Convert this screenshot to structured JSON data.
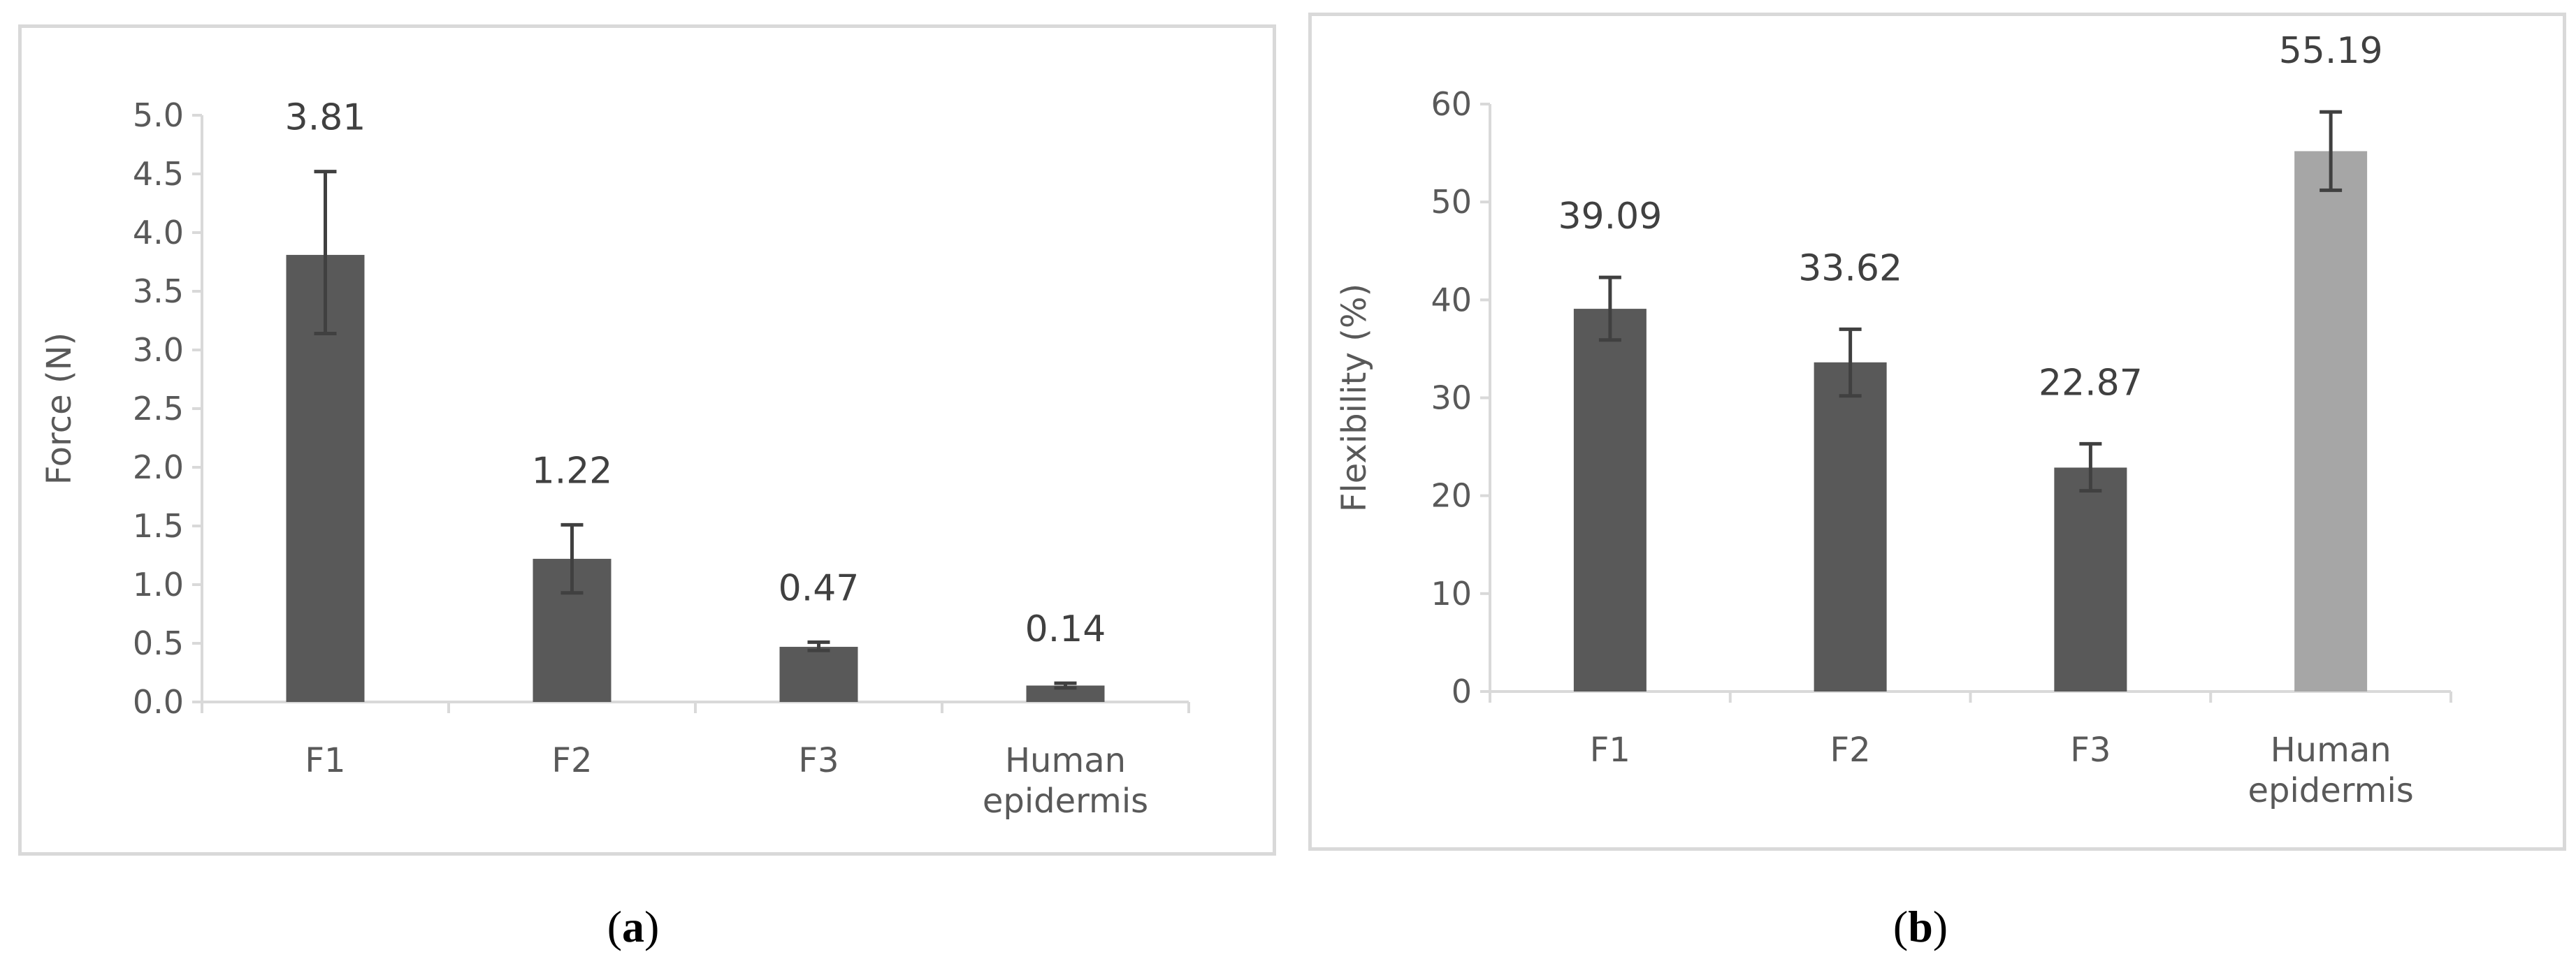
{
  "chart_data": [
    {
      "type": "bar",
      "panel_label": "a",
      "categories": [
        "F1",
        "F2",
        "F3",
        "Human epidermis"
      ],
      "category_lines": [
        [
          "F1"
        ],
        [
          "F2"
        ],
        [
          "F3"
        ],
        [
          "Human",
          "epidermis"
        ]
      ],
      "values": [
        3.81,
        1.22,
        0.47,
        0.14
      ],
      "value_labels": [
        "3.81",
        "1.22",
        "0.47",
        "0.14"
      ],
      "error_low": [
        3.14,
        0.93,
        0.44,
        0.12
      ],
      "error_high": [
        4.52,
        1.51,
        0.51,
        0.16
      ],
      "ylabel": "Force (N)",
      "xlabel": "",
      "ylim": [
        0,
        5
      ],
      "yticks": [
        "0.0",
        "0.5",
        "1.0",
        "1.5",
        "2.0",
        "2.5",
        "3.0",
        "3.5",
        "4.0",
        "4.5",
        "5.0"
      ],
      "bar_colors": [
        "#595959",
        "#595959",
        "#595959",
        "#595959"
      ],
      "grid": false
    },
    {
      "type": "bar",
      "panel_label": "b",
      "categories": [
        "F1",
        "F2",
        "F3",
        "Human epidermis"
      ],
      "category_lines": [
        [
          "F1"
        ],
        [
          "F2"
        ],
        [
          "F3"
        ],
        [
          "Human",
          "epidermis"
        ]
      ],
      "values": [
        39.09,
        33.62,
        22.87,
        55.19
      ],
      "value_labels": [
        "39.09",
        "33.62",
        "22.87",
        "55.19"
      ],
      "error_low": [
        35.9,
        30.2,
        20.5,
        51.2
      ],
      "error_high": [
        42.3,
        37.0,
        25.3,
        59.2
      ],
      "ylabel": "Flexibility (%)",
      "xlabel": "",
      "ylim": [
        0,
        60
      ],
      "yticks": [
        "0",
        "10",
        "20",
        "30",
        "40",
        "50",
        "60"
      ],
      "bar_colors": [
        "#595959",
        "#595959",
        "#595959",
        "#a6a6a6"
      ],
      "grid": false
    }
  ]
}
